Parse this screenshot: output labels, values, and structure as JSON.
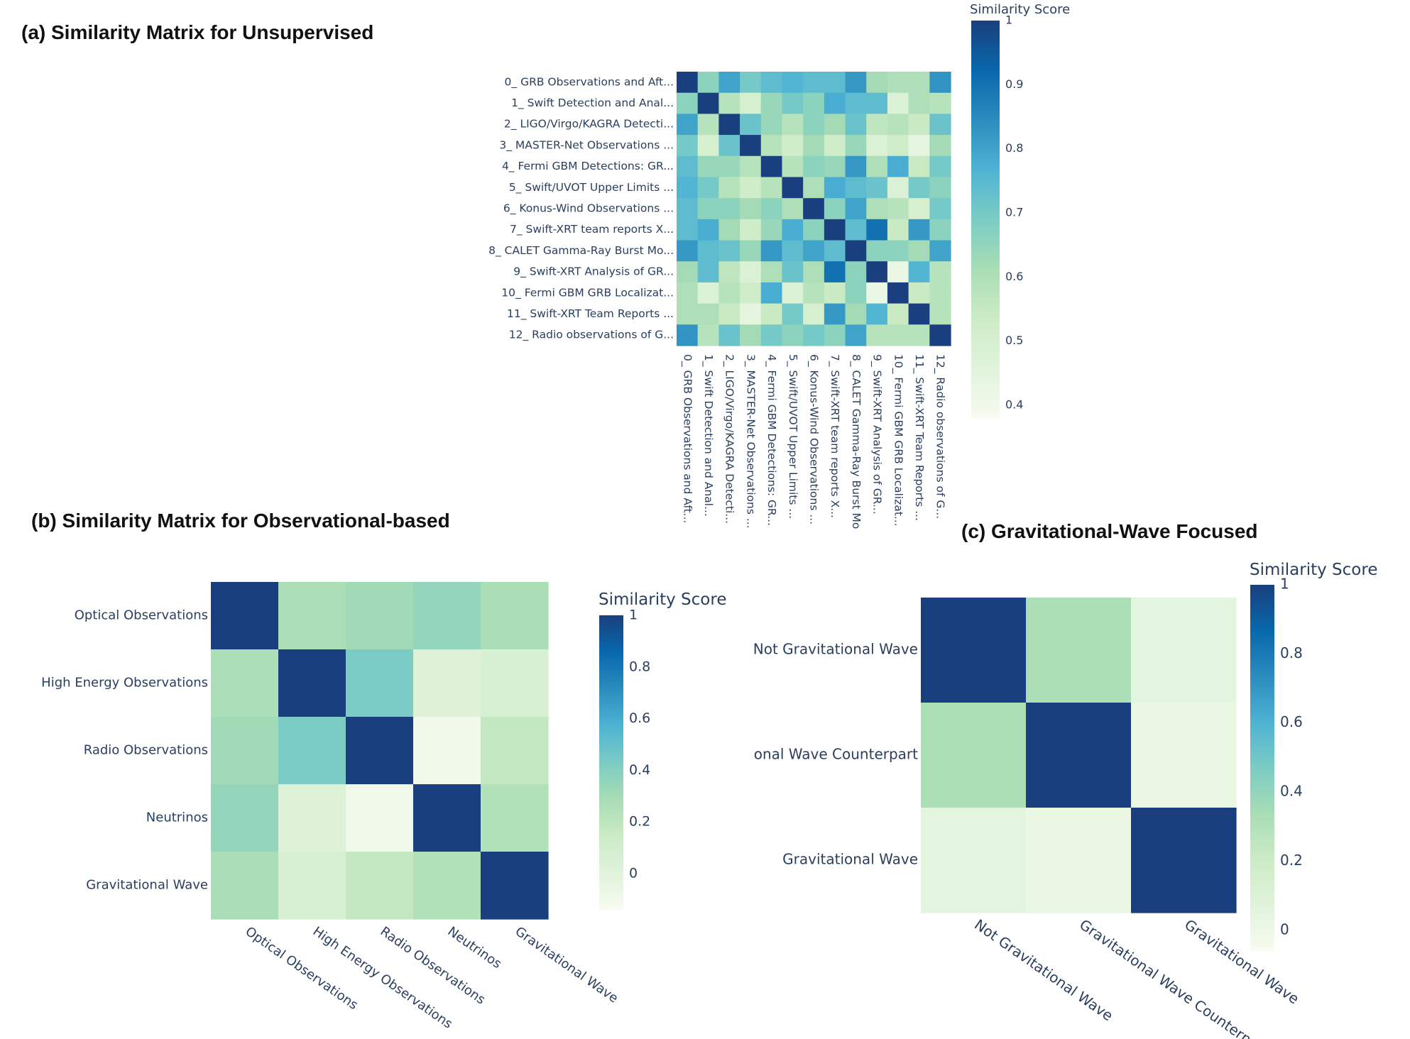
{
  "colorscale": [
    "#f7fcf0",
    "#e0f3db",
    "#ccebc5",
    "#a8ddb5",
    "#7bccc4",
    "#4eb3d3",
    "#2b8cbe",
    "#0868ac",
    "#1a3f7e"
  ],
  "chart_data": [
    {
      "type": "heatmap",
      "title": "(a) Similarity Matrix for Unsupervised",
      "labels": [
        "0_ GRB Observations and Aft...",
        "1_ Swift Detection and Anal...",
        "2_ LIGO/Virgo/KAGRA Detecti...",
        "3_ MASTER-Net Observations ...",
        "4_ Fermi GBM Detections: GR...",
        "5_ Swift/UVOT Upper Limits ...",
        "6_ Konus-Wind Observations ...",
        "7_ Swift-XRT team reports X...",
        "8_ CALET Gamma-Ray Burst Mo...",
        "9_ Swift-XRT Analysis of GR...",
        "10_ Fermi GBM GRB Localizat...",
        "11_ Swift-XRT Team Reports ...",
        "12_ Radio observations of G..."
      ],
      "x_labels": [
        "0_ GRB Observations and Aft...",
        "1_ Swift Detection and Anal...",
        "2_ LIGO/Virgo/KAGRA Detecti...",
        "3_ MASTER-Net Observations ...",
        "4_ Fermi GBM Detections: GR...",
        "5_ Swift/UVOT Upper Limits ...",
        "6_ Konus-Wind Observations ...",
        "7_ Swift-XRT team reports X...",
        "8_ CALET Gamma-Ray Burst Mo",
        "9_ Swift-XRT Analysis of GR...",
        "10_ Fermi GBM GRB Localizat...",
        "11_ Swift-XRT Team Reports ...",
        "12_ Radio observations of G..."
      ],
      "z": [
        [
          1.0,
          0.66,
          0.8,
          0.7,
          0.74,
          0.76,
          0.74,
          0.74,
          0.82,
          0.62,
          0.6,
          0.6,
          0.83
        ],
        [
          0.66,
          1.0,
          0.58,
          0.5,
          0.64,
          0.7,
          0.66,
          0.78,
          0.74,
          0.74,
          0.48,
          0.6,
          0.58
        ],
        [
          0.8,
          0.58,
          1.0,
          0.72,
          0.64,
          0.58,
          0.66,
          0.62,
          0.72,
          0.56,
          0.58,
          0.54,
          0.72
        ],
        [
          0.7,
          0.5,
          0.72,
          1.0,
          0.58,
          0.52,
          0.62,
          0.52,
          0.64,
          0.48,
          0.52,
          0.44,
          0.62
        ],
        [
          0.74,
          0.64,
          0.64,
          0.58,
          1.0,
          0.58,
          0.66,
          0.64,
          0.82,
          0.6,
          0.78,
          0.54,
          0.7
        ],
        [
          0.76,
          0.7,
          0.58,
          0.52,
          0.58,
          1.0,
          0.6,
          0.78,
          0.74,
          0.72,
          0.48,
          0.7,
          0.66
        ],
        [
          0.74,
          0.66,
          0.66,
          0.62,
          0.66,
          0.6,
          1.0,
          0.66,
          0.8,
          0.6,
          0.58,
          0.5,
          0.7
        ],
        [
          0.74,
          0.78,
          0.62,
          0.52,
          0.64,
          0.78,
          0.66,
          1.0,
          0.74,
          0.9,
          0.54,
          0.82,
          0.66
        ],
        [
          0.82,
          0.74,
          0.72,
          0.64,
          0.82,
          0.74,
          0.8,
          0.74,
          1.0,
          0.66,
          0.66,
          0.62,
          0.8
        ],
        [
          0.62,
          0.74,
          0.56,
          0.48,
          0.6,
          0.72,
          0.6,
          0.9,
          0.66,
          1.0,
          0.42,
          0.76,
          0.58
        ],
        [
          0.6,
          0.48,
          0.58,
          0.52,
          0.78,
          0.48,
          0.58,
          0.54,
          0.66,
          0.42,
          1.0,
          0.54,
          0.58
        ],
        [
          0.6,
          0.6,
          0.54,
          0.44,
          0.54,
          0.7,
          0.5,
          0.82,
          0.62,
          0.76,
          0.54,
          1.0,
          0.58
        ],
        [
          0.83,
          0.58,
          0.72,
          0.62,
          0.7,
          0.66,
          0.7,
          0.66,
          0.8,
          0.58,
          0.58,
          0.58,
          1.0
        ]
      ],
      "zmin": 0.38,
      "zmax": 1.0,
      "colorbar": {
        "title": "Similarity Score",
        "ticks": [
          0.4,
          0.5,
          0.6,
          0.7,
          0.8,
          0.9,
          1
        ],
        "tick_labels": [
          "0.4",
          "0.5",
          "0.6",
          "0.7",
          "0.8",
          "0.9",
          "1"
        ]
      }
    },
    {
      "type": "heatmap",
      "title": "(b) Similarity Matrix for Observational-based",
      "labels": [
        "Optical Observations",
        "High Energy Observations",
        "Radio Observations",
        "Neutrinos",
        "Gravitational Wave"
      ],
      "z": [
        [
          1.0,
          0.27,
          0.31,
          0.35,
          0.28
        ],
        [
          0.27,
          1.0,
          0.43,
          0.02,
          0.06
        ],
        [
          0.31,
          0.43,
          1.0,
          -0.1,
          0.18
        ],
        [
          0.35,
          0.02,
          -0.1,
          1.0,
          0.25
        ],
        [
          0.28,
          0.06,
          0.18,
          0.25,
          1.0
        ]
      ],
      "zmin": -0.14,
      "zmax": 1.0,
      "colorbar": {
        "title": "Similarity Score",
        "ticks": [
          0,
          0.2,
          0.4,
          0.6,
          0.8,
          1
        ],
        "tick_labels": [
          "0",
          "0.2",
          "0.4",
          "0.6",
          "0.8",
          "1"
        ]
      }
    },
    {
      "type": "heatmap",
      "title": "(c) Gravitational-Wave Focused",
      "y_labels": [
        "Not Gravitational Wave",
        "onal Wave Counterpart",
        "Gravitational Wave"
      ],
      "x_labels": [
        "Not Gravitational Wave",
        "Gravitational Wave Counterpart",
        "Gravitational Wave"
      ],
      "z": [
        [
          1.0,
          0.32,
          0.05
        ],
        [
          0.32,
          1.0,
          0.02
        ],
        [
          0.05,
          0.02,
          1.0
        ]
      ],
      "zmin": -0.06,
      "zmax": 1.0,
      "colorbar": {
        "title": "Similarity Score",
        "ticks": [
          0,
          0.2,
          0.4,
          0.6,
          0.8,
          1
        ],
        "tick_labels": [
          "0",
          "0.2",
          "0.4",
          "0.6",
          "0.8",
          "1"
        ]
      }
    }
  ]
}
